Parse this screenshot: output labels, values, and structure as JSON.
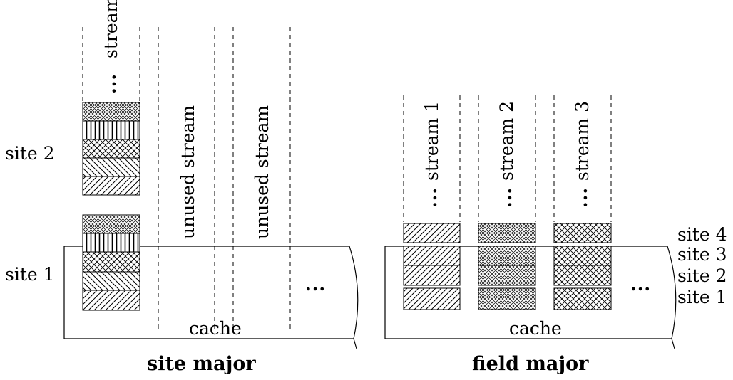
{
  "site_major": {
    "caption": "site major",
    "cache_label": "cache",
    "site_labels": [
      "site 1",
      "site 2"
    ],
    "stream_label": "stream",
    "unused_labels": [
      "unused stream",
      "unused stream"
    ],
    "ellipsis": "...",
    "field_patterns": [
      "diag-right",
      "diag-left",
      "crosshatch",
      "vertical",
      "crosshatch-fine"
    ]
  },
  "field_major": {
    "caption": "field major",
    "cache_label": "cache",
    "streams": [
      {
        "label": "stream 1",
        "pattern": "diag-right"
      },
      {
        "label": "stream 2",
        "pattern": "crosshatch-fine"
      },
      {
        "label": "stream 3",
        "pattern": "crosshatch"
      }
    ],
    "site_labels": [
      "site 4",
      "site 3",
      "site 2",
      "site 1"
    ],
    "ellipsis": "..."
  },
  "colors": {
    "line": "#000000",
    "background": "#ffffff"
  }
}
